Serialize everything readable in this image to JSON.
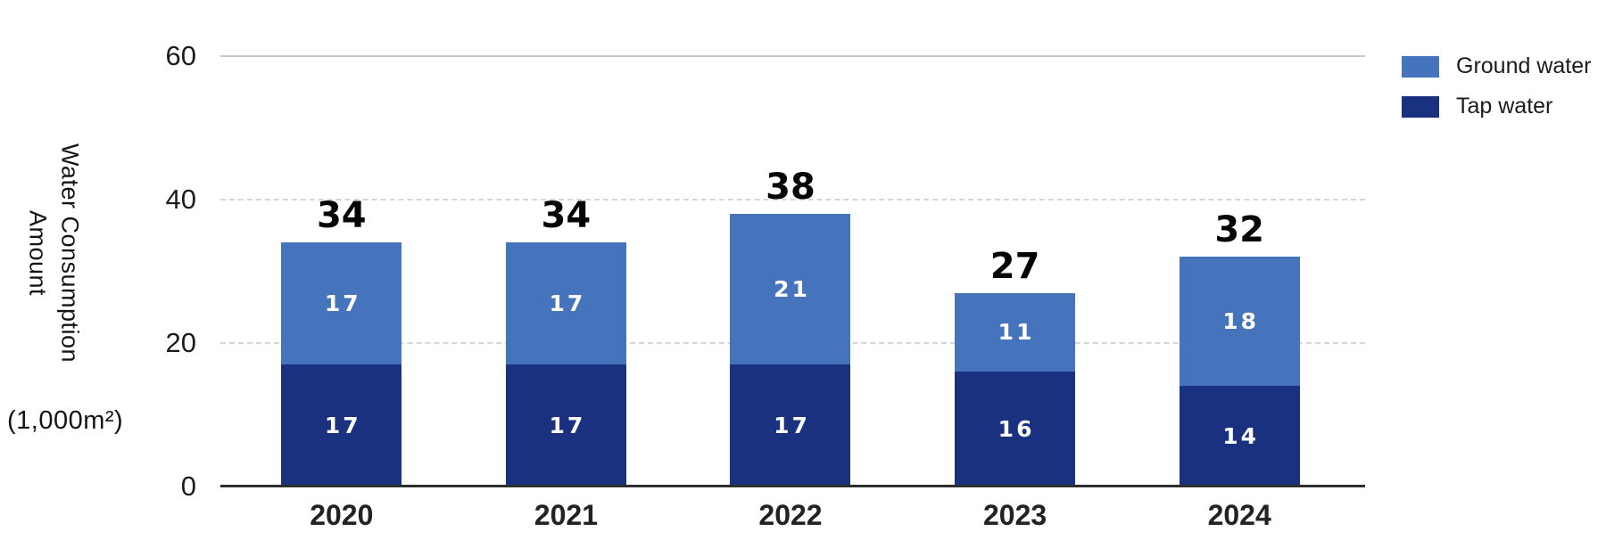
{
  "chart_data": {
    "type": "bar",
    "stacked": true,
    "categories": [
      "2020",
      "2021",
      "2022",
      "2023",
      "2024"
    ],
    "series": [
      {
        "name": "Ground water",
        "color": "#4573bc",
        "values": [
          17,
          17,
          21,
          11,
          18
        ]
      },
      {
        "name": "Tap water",
        "color": "#1a3180",
        "values": [
          17,
          17,
          17,
          16,
          14
        ]
      }
    ],
    "totals": [
      34,
      34,
      38,
      27,
      32
    ],
    "ylabel": "Water Consumption\nAmount",
    "unit_label": "(1,000m²)",
    "ylim": [
      0,
      60
    ],
    "yticks": [
      0,
      20,
      40,
      60
    ],
    "grid": "horizontal; solid line at 60, dotted at 40 and 20, axis line at 0",
    "legend_position": "top-right"
  }
}
